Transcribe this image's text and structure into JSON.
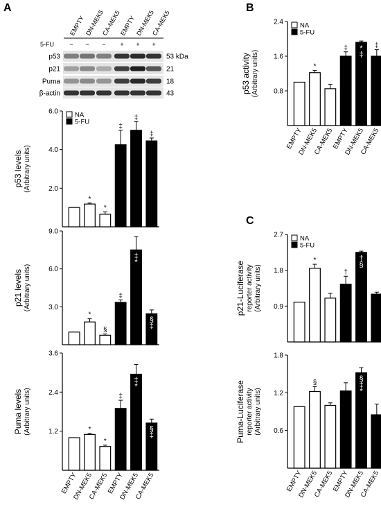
{
  "figure": {
    "panel_labels": [
      "A",
      "B",
      "C"
    ],
    "blot": {
      "lane_labels": [
        "EMPTY",
        "DN-MEK5",
        "CA-MEK5",
        "EMPTY",
        "DN-MEK5",
        "CA-MEK5"
      ],
      "treatment_label": "5-FU",
      "treatment_signs": [
        "−",
        "−",
        "−",
        "+",
        "+",
        "+"
      ],
      "proteins": [
        "p53",
        "p21",
        "Puma",
        "β-actin"
      ],
      "kda": [
        "53 kDa",
        "21",
        "18",
        "43"
      ],
      "band_intensity": [
        [
          0.5,
          0.55,
          0.5,
          0.85,
          0.9,
          0.85
        ],
        [
          0.35,
          0.45,
          0.3,
          0.8,
          0.95,
          0.7
        ],
        [
          0.4,
          0.45,
          0.4,
          0.8,
          0.9,
          0.8
        ],
        [
          0.85,
          0.85,
          0.85,
          0.85,
          0.85,
          0.85
        ]
      ]
    }
  },
  "chart_data": [
    {
      "id": "A1",
      "type": "bar",
      "ylabel": "p53 levels",
      "ylabel2": "(Arbitrary units)",
      "ylim": [
        0,
        6
      ],
      "yticks": [
        "2.0",
        "4.0",
        "6.0"
      ],
      "categories": [
        "EMPTY",
        "DN-MEK5",
        "CA-MEK5",
        "EMPTY",
        "DN-MEK5",
        "CA-MEK5"
      ],
      "groups": [
        "NA",
        "NA",
        "NA",
        "5-FU",
        "5-FU",
        "5-FU"
      ],
      "values": [
        1.0,
        1.18,
        0.65,
        4.25,
        5.0,
        4.45
      ],
      "errors": [
        0,
        0.05,
        0.12,
        0.75,
        0.45,
        0.15
      ],
      "annotations": [
        "",
        "*",
        "*",
        "‡",
        "‡",
        "‡"
      ],
      "legend": [
        "NA",
        "5-FU"
      ],
      "legend_position": "top-left"
    },
    {
      "id": "A2",
      "type": "bar",
      "ylabel": "p21 levels",
      "ylabel2": "(Arbitrary units)",
      "ylim": [
        0,
        9
      ],
      "yticks": [
        "3.0",
        "6.0",
        "9.0"
      ],
      "categories": [
        "EMPTY",
        "DN-MEK5",
        "CA-MEK5",
        "EMPTY",
        "DN-MEK5",
        "CA-MEK5"
      ],
      "groups": [
        "NA",
        "NA",
        "NA",
        "5-FU",
        "5-FU",
        "5-FU"
      ],
      "values": [
        1.0,
        1.8,
        0.75,
        3.35,
        7.5,
        2.45
      ],
      "errors": [
        0,
        0.25,
        0.1,
        0.2,
        1.05,
        0.3
      ],
      "annotations": [
        "",
        "*",
        "§",
        "‡",
        "*‡",
        "‡§"
      ]
    },
    {
      "id": "A3",
      "type": "bar",
      "ylabel": "Puma levels",
      "ylabel2": "(Arbitrary units)",
      "ylim": [
        0,
        3.6
      ],
      "yticks": [
        "1.2",
        "2.4",
        "3.6"
      ],
      "categories": [
        "EMPTY",
        "DN-MEK5",
        "CA-MEK5",
        "EMPTY",
        "DN-MEK5",
        "CA-MEK5"
      ],
      "groups": [
        "NA",
        "NA",
        "NA",
        "5-FU",
        "5-FU",
        "5-FU"
      ],
      "values": [
        1.0,
        1.1,
        0.73,
        1.9,
        2.95,
        1.45
      ],
      "errors": [
        0,
        0.03,
        0.04,
        0.25,
        0.3,
        0.12
      ],
      "annotations": [
        "",
        "*",
        "*",
        "‡",
        "*‡",
        "‡§"
      ],
      "x_tick_labels": [
        "EMPTY",
        "DN-MEK5",
        "CA-MEK5",
        "EMPTY",
        "DN-MEK5",
        "CA-MEK5"
      ]
    },
    {
      "id": "B",
      "type": "bar",
      "ylabel": "p53 activity",
      "ylabel2": "(Arbitrary units)",
      "ylim": [
        0,
        2.4
      ],
      "yticks": [
        "0.8",
        "1.6",
        "2.4"
      ],
      "categories": [
        "EMPTY",
        "DN-MEK5",
        "CA-MEK5",
        "EMPTY",
        "DN-MEK5",
        "CA-MEK5"
      ],
      "groups": [
        "NA",
        "NA",
        "NA",
        "5-FU",
        "5-FU",
        "5-FU"
      ],
      "values": [
        1.0,
        1.22,
        0.85,
        1.6,
        1.92,
        1.6
      ],
      "errors": [
        0,
        0.05,
        0.1,
        0.1,
        0.03,
        0.15
      ],
      "annotations": [
        "",
        "*",
        "",
        "‡",
        "‡*",
        "‡"
      ],
      "legend": [
        "NA",
        "5-FU"
      ],
      "legend_position": "top-left",
      "x_tick_labels": [
        "EMPTY",
        "DN-MEK5",
        "CA-MEK5",
        "EMPTY",
        "DN-MEK5",
        "CA-MEK5"
      ]
    },
    {
      "id": "C1",
      "type": "bar",
      "ylabel": "p21-Luciferase",
      "ylabel2": "reporter activity",
      "ylabel3": "(Arbitrary units)",
      "ylim": [
        0,
        2.7
      ],
      "yticks": [
        "0.9",
        "1.8",
        "2.7"
      ],
      "categories": [
        "EMPTY",
        "DN-MEK5",
        "CA-MEK5",
        "EMPTY",
        "DN-MEK5",
        "CA-MEK5"
      ],
      "groups": [
        "NA",
        "NA",
        "NA",
        "5-FU",
        "5-FU",
        "5-FU"
      ],
      "values": [
        1.0,
        1.85,
        1.1,
        1.45,
        2.25,
        1.2
      ],
      "errors": [
        0,
        0.1,
        0.12,
        0.2,
        0.03,
        0.05
      ],
      "annotations": [
        "",
        "*",
        "",
        "†",
        "§†",
        ""
      ],
      "legend": [
        "NA",
        "5-FU"
      ],
      "legend_position": "top-left"
    },
    {
      "id": "C2",
      "type": "bar",
      "ylabel": "Puma-Luciferase",
      "ylabel2": "reporter activity",
      "ylabel3": "(Arbitrary units)",
      "ylim": [
        0,
        1.8
      ],
      "yticks": [
        "0.6",
        "1.2",
        "1.8"
      ],
      "categories": [
        "EMPTY",
        "DN-MEK5",
        "CA-MEK5",
        "EMPTY",
        "DN-MEK5",
        "CA-MEK5"
      ],
      "groups": [
        "NA",
        "NA",
        "NA",
        "5-FU",
        "5-FU",
        "5-FU"
      ],
      "values": [
        0.98,
        1.22,
        1.0,
        1.23,
        1.52,
        0.85
      ],
      "errors": [
        0,
        0.08,
        0.04,
        0.13,
        0.08,
        0.17
      ],
      "annotations": [
        "",
        "§",
        "",
        "",
        "*‡§",
        ""
      ],
      "x_tick_labels": [
        "EMPTY",
        "DN-MEK5",
        "CA-MEK5",
        "EMPTY",
        "DN-MEK5",
        "CA-MEK5"
      ]
    }
  ]
}
